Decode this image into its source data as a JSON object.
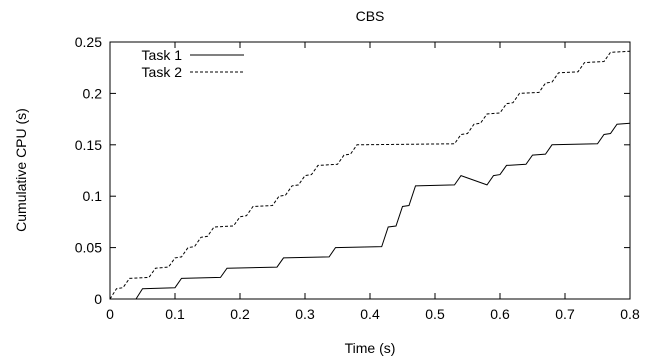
{
  "chart_data": {
    "type": "line",
    "title": "CBS",
    "xlabel": "Time (s)",
    "ylabel": "Cumulative CPU (s)",
    "xlim": [
      0,
      0.8
    ],
    "ylim": [
      0,
      0.25
    ],
    "xticks": [
      0,
      0.1,
      0.2,
      0.3,
      0.4,
      0.5,
      0.6,
      0.7,
      0.8
    ],
    "xtick_labels": [
      "0",
      "0.1",
      "0.2",
      "0.3",
      "0.4",
      "0.5",
      "0.6",
      "0.7",
      "0.8"
    ],
    "yticks": [
      0,
      0.05,
      0.1,
      0.15,
      0.2,
      0.25
    ],
    "ytick_labels": [
      "0",
      "0.05",
      "0.1",
      "0.15",
      "0.2",
      "0.25"
    ],
    "grid": false,
    "legend_position": "top-left",
    "series": [
      {
        "name": "Task 1",
        "line_style": "solid",
        "color": "#000000",
        "points": [
          [
            0.04,
            0.0
          ],
          [
            0.05,
            0.01
          ],
          [
            0.1,
            0.011
          ],
          [
            0.11,
            0.02
          ],
          [
            0.17,
            0.021
          ],
          [
            0.18,
            0.03
          ],
          [
            0.257,
            0.031
          ],
          [
            0.267,
            0.04
          ],
          [
            0.337,
            0.041
          ],
          [
            0.347,
            0.05
          ],
          [
            0.418,
            0.051
          ],
          [
            0.428,
            0.07
          ],
          [
            0.44,
            0.071
          ],
          [
            0.45,
            0.09
          ],
          [
            0.46,
            0.091
          ],
          [
            0.47,
            0.11
          ],
          [
            0.53,
            0.111
          ],
          [
            0.54,
            0.12
          ],
          [
            0.58,
            0.111
          ],
          [
            0.59,
            0.12
          ],
          [
            0.6,
            0.121
          ],
          [
            0.61,
            0.13
          ],
          [
            0.64,
            0.131
          ],
          [
            0.65,
            0.14
          ],
          [
            0.67,
            0.141
          ],
          [
            0.68,
            0.15
          ],
          [
            0.75,
            0.151
          ],
          [
            0.76,
            0.16
          ],
          [
            0.77,
            0.161
          ],
          [
            0.78,
            0.17
          ],
          [
            0.8,
            0.171
          ]
        ]
      },
      {
        "name": "Task 2",
        "line_style": "dashed",
        "color": "#000000",
        "points": [
          [
            0.0,
            0.0
          ],
          [
            0.01,
            0.01
          ],
          [
            0.02,
            0.011
          ],
          [
            0.03,
            0.02
          ],
          [
            0.06,
            0.021
          ],
          [
            0.07,
            0.03
          ],
          [
            0.09,
            0.031
          ],
          [
            0.1,
            0.04
          ],
          [
            0.11,
            0.041
          ],
          [
            0.12,
            0.05
          ],
          [
            0.13,
            0.051
          ],
          [
            0.14,
            0.06
          ],
          [
            0.15,
            0.061
          ],
          [
            0.16,
            0.07
          ],
          [
            0.19,
            0.071
          ],
          [
            0.2,
            0.08
          ],
          [
            0.21,
            0.081
          ],
          [
            0.22,
            0.09
          ],
          [
            0.25,
            0.091
          ],
          [
            0.26,
            0.1
          ],
          [
            0.27,
            0.101
          ],
          [
            0.28,
            0.11
          ],
          [
            0.29,
            0.111
          ],
          [
            0.3,
            0.12
          ],
          [
            0.31,
            0.121
          ],
          [
            0.32,
            0.13
          ],
          [
            0.35,
            0.131
          ],
          [
            0.36,
            0.14
          ],
          [
            0.37,
            0.141
          ],
          [
            0.38,
            0.15
          ],
          [
            0.53,
            0.151
          ],
          [
            0.54,
            0.16
          ],
          [
            0.55,
            0.161
          ],
          [
            0.56,
            0.17
          ],
          [
            0.57,
            0.171
          ],
          [
            0.58,
            0.18
          ],
          [
            0.6,
            0.181
          ],
          [
            0.61,
            0.19
          ],
          [
            0.62,
            0.191
          ],
          [
            0.63,
            0.2
          ],
          [
            0.66,
            0.201
          ],
          [
            0.67,
            0.21
          ],
          [
            0.68,
            0.211
          ],
          [
            0.69,
            0.22
          ],
          [
            0.72,
            0.221
          ],
          [
            0.73,
            0.23
          ],
          [
            0.76,
            0.231
          ],
          [
            0.77,
            0.24
          ],
          [
            0.8,
            0.241
          ]
        ]
      }
    ]
  }
}
